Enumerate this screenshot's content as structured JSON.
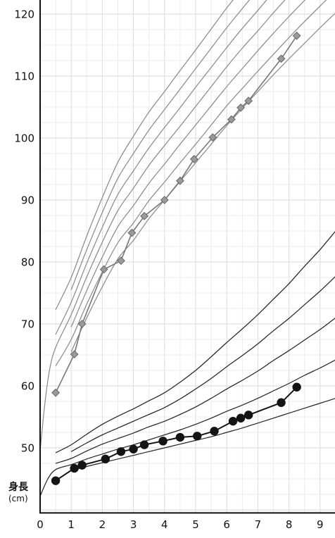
{
  "chart_data": {
    "type": "line",
    "title": "",
    "xlabel": "",
    "ylabel": "身長",
    "yunit": "(cm)",
    "xlim": [
      0,
      9.48
    ],
    "ylim": [
      39.5,
      122.3
    ],
    "x_ticks": [
      0,
      1,
      2,
      3,
      4,
      5,
      6,
      7,
      8,
      9
    ],
    "y_ticks": [
      50,
      60,
      70,
      80,
      90,
      100,
      110,
      120
    ],
    "grid": true,
    "series": [
      {
        "marker": "diamond",
        "color": "#9a9a9a",
        "edge_color": "#666666",
        "line_color": "#777777",
        "x": [
          0.5,
          1.1,
          1.35,
          2.05,
          2.6,
          2.95,
          3.35,
          4.0,
          4.5,
          4.95,
          5.55,
          6.15,
          6.45,
          6.7,
          7.75,
          8.25
        ],
        "y": [
          58.9,
          65.1,
          70.0,
          78.8,
          80.2,
          84.7,
          87.4,
          90.0,
          93.1,
          96.6,
          100.1,
          103.0,
          104.9,
          106.0,
          112.8,
          116.5
        ]
      },
      {
        "marker": "circle",
        "color": "#141414",
        "edge_color": "#141414",
        "line_color": "#141414",
        "x": [
          0.5,
          1.1,
          1.35,
          2.1,
          2.6,
          3.0,
          3.35,
          3.95,
          4.5,
          5.05,
          5.6,
          6.2,
          6.45,
          6.7,
          7.75,
          8.25
        ],
        "y": [
          44.7,
          46.7,
          47.2,
          48.2,
          49.4,
          49.8,
          50.5,
          51.1,
          51.7,
          51.9,
          52.7,
          54.3,
          54.8,
          55.3,
          57.3,
          59.8
        ]
      }
    ],
    "reference_curves": [
      {
        "color": "#8c8c8c",
        "x": [
          1,
          1.5,
          2,
          2.5,
          3,
          3.5,
          4,
          4.5,
          5,
          5.5,
          6,
          6.5,
          7,
          7.5,
          8,
          8.5,
          9,
          9.5
        ],
        "y": [
          65.5,
          71,
          76,
          80.5,
          83.5,
          87,
          90,
          93,
          96,
          99,
          102,
          104.8,
          107.5,
          110.2,
          112.8,
          115.3,
          117.8,
          120.2
        ]
      },
      {
        "color": "#8c8c8c",
        "x": [
          0.5,
          1,
          1.5,
          2,
          2.5,
          3,
          3.5,
          4,
          4.5,
          5,
          5.5,
          6,
          6.5,
          7,
          7.5,
          8,
          8.5,
          9,
          9.5
        ],
        "y": [
          63.2,
          67.5,
          73.2,
          78.4,
          83.1,
          86.3,
          89.9,
          92.9,
          96.0,
          99.0,
          102.1,
          105.2,
          108.0,
          110.8,
          113.5,
          116.2,
          118.8,
          121.3,
          123.8
        ]
      },
      {
        "color": "#8c8c8c",
        "x": [
          1,
          1.5,
          2,
          2.5,
          3,
          3.5,
          4,
          4.5,
          5,
          5.5,
          6,
          6.5,
          7,
          7.5,
          8,
          8.5,
          9
        ],
        "y": [
          69.5,
          75.4,
          80.8,
          85.7,
          89.1,
          92.7,
          95.8,
          99.0,
          102.1,
          105.2,
          108.3,
          111.2,
          114.1,
          116.9,
          119.6,
          122.2,
          124.8
        ]
      },
      {
        "color": "#8c8c8c",
        "x": [
          0,
          0.15,
          0.3,
          0.5,
          1,
          1.5,
          2,
          2.5,
          3,
          3.5,
          4,
          4.5,
          5,
          5.5,
          6,
          6.5,
          7,
          7.5,
          8
        ],
        "y": [
          49.5,
          57,
          62.5,
          66.2,
          71.5,
          77.6,
          83.2,
          88.3,
          91.9,
          95.6,
          98.8,
          101.9,
          105.1,
          108.3,
          111.5,
          114.5,
          117.3,
          120.2,
          123.0
        ]
      },
      {
        "color": "#8c8c8c",
        "x": [
          0.5,
          1,
          1.5,
          2,
          2.5,
          3,
          3.5,
          4,
          4.5,
          5,
          5.5,
          6,
          6.5,
          7,
          7.5
        ],
        "y": [
          68.3,
          73.5,
          79.8,
          85.6,
          90.9,
          94.7,
          98.4,
          101.7,
          104.9,
          108.2,
          111.4,
          114.6,
          117.7,
          120.6,
          123.6
        ]
      },
      {
        "color": "#8c8c8c",
        "x": [
          1,
          1.5,
          2,
          2.5,
          3,
          3.5,
          4,
          4.5,
          5,
          5.5,
          6,
          6.5,
          7
        ],
        "y": [
          75.5,
          82.0,
          88.0,
          93.5,
          97.5,
          101.3,
          104.6,
          107.9,
          111.2,
          114.5,
          117.8,
          120.9,
          123.9
        ]
      },
      {
        "color": "#8c8c8c",
        "x": [
          0.5,
          1,
          1.5,
          2,
          2.5,
          3,
          3.5,
          4,
          4.5,
          5,
          5.5,
          6,
          6.5
        ],
        "y": [
          72.3,
          77.5,
          84.2,
          90.4,
          96.1,
          100.3,
          104.2,
          107.5,
          110.9,
          114.2,
          117.6,
          121.0,
          124.1
        ]
      },
      {
        "color": "#262626",
        "x": [
          1,
          1.5,
          2,
          2.5,
          3,
          3.5,
          4,
          4.5,
          5,
          5.5,
          6,
          6.5,
          7,
          7.5,
          8,
          8.5,
          9,
          9.5
        ],
        "y": [
          46.3,
          47.0,
          47.6,
          48.2,
          48.8,
          49.4,
          50.0,
          50.6,
          51.2,
          51.8,
          52.5,
          53.2,
          54.0,
          54.8,
          55.6,
          56.4,
          57.2,
          58.0
        ]
      },
      {
        "color": "#262626",
        "x": [
          0,
          0.25,
          0.5,
          1,
          1.5,
          2,
          2.5,
          3,
          3.5,
          4,
          4.5,
          5,
          5.5,
          6,
          6.5,
          7,
          7.5,
          8,
          8.5,
          9,
          9.5
        ],
        "y": [
          42.2,
          45.0,
          46.5,
          47.3,
          48.2,
          49.0,
          49.8,
          50.5,
          51.3,
          52.1,
          52.9,
          53.8,
          54.8,
          55.9,
          56.9,
          58.0,
          59.2,
          60.4,
          61.7,
          62.9,
          64.2
        ]
      },
      {
        "color": "#262626",
        "x": [
          0.5,
          1,
          1.5,
          2,
          2.5,
          3,
          3.5,
          4,
          4.5,
          5,
          5.5,
          6,
          6.5,
          7,
          7.5,
          8,
          8.5,
          9,
          9.5
        ],
        "y": [
          47.5,
          48.3,
          49.5,
          50.6,
          51.5,
          52.4,
          53.4,
          54.3,
          55.4,
          56.6,
          58.0,
          59.5,
          60.9,
          62.4,
          64.1,
          65.7,
          67.4,
          69.1,
          71.0
        ]
      },
      {
        "color": "#262626",
        "x": [
          1,
          1.5,
          2,
          2.5,
          3,
          3.5,
          4,
          4.5,
          5,
          5.5,
          6,
          6.5,
          7,
          7.5,
          8,
          8.5,
          9,
          9.5
        ],
        "y": [
          49.4,
          50.8,
          52.1,
          53.2,
          54.3,
          55.4,
          56.5,
          57.9,
          59.5,
          61.2,
          63.1,
          64.9,
          66.8,
          68.9,
          70.9,
          73.1,
          75.3,
          77.7
        ]
      },
      {
        "color": "#262626",
        "x": [
          0.5,
          1,
          1.5,
          2,
          2.5,
          3,
          3.5,
          4,
          4.5,
          5,
          5.5,
          6,
          6.5,
          7,
          7.5,
          8,
          8.5,
          9,
          9.5
        ],
        "y": [
          49.2,
          50.5,
          52.2,
          53.8,
          55.1,
          56.3,
          57.6,
          58.9,
          60.6,
          62.5,
          64.7,
          67.0,
          69.2,
          71.5,
          74.0,
          76.5,
          79.3,
          82.0,
          85.0
        ]
      }
    ]
  }
}
